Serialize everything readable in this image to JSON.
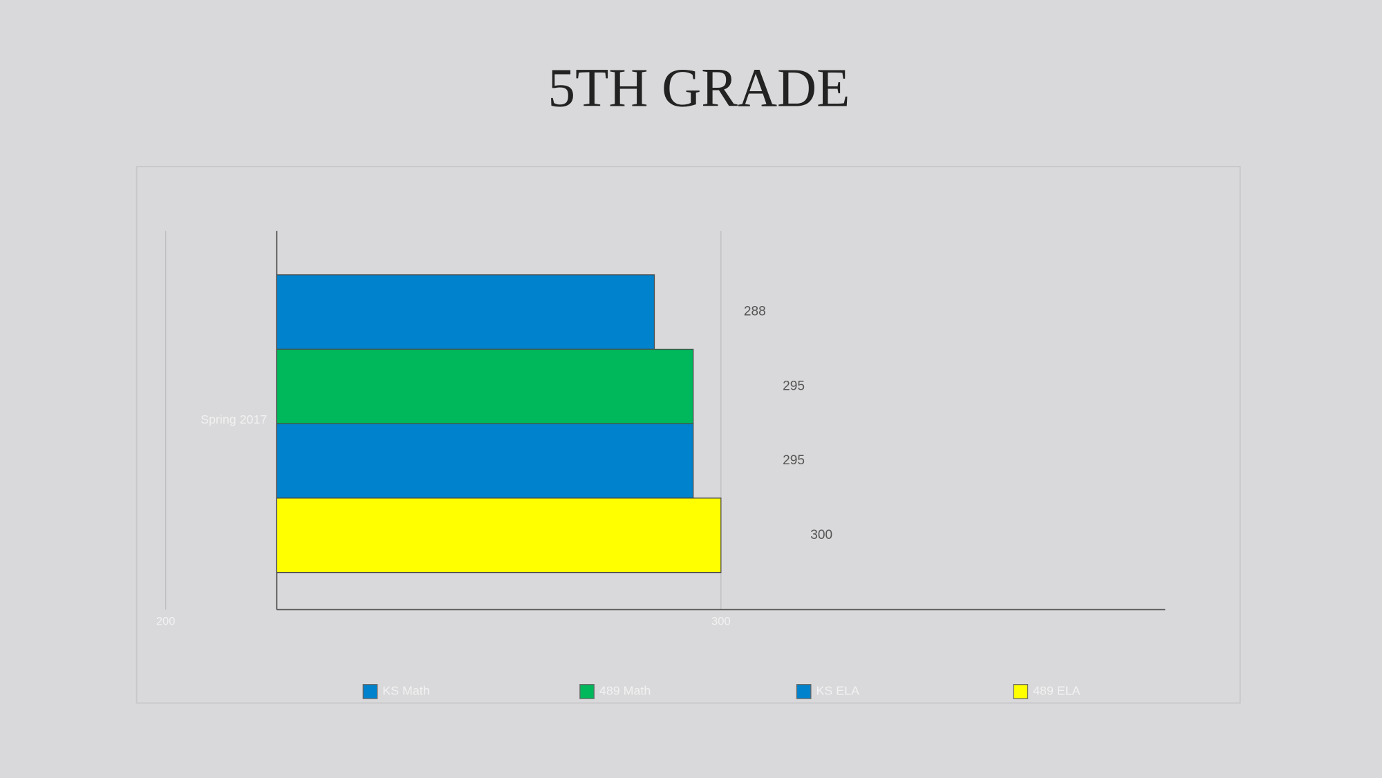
{
  "chart_data": {
    "type": "bar",
    "orientation": "horizontal",
    "title": "5TH GRADE",
    "categories": [
      "Spring 2017"
    ],
    "series": [
      {
        "name": "KS Math",
        "color": "#0082cc",
        "values": [
          288
        ]
      },
      {
        "name": "489 Math",
        "color": "#00b85c",
        "values": [
          295
        ]
      },
      {
        "name": "KS ELA",
        "color": "#0082cc",
        "values": [
          295
        ]
      },
      {
        "name": "489 ELA",
        "color": "#ffff00",
        "values": [
          300
        ]
      }
    ],
    "xlim": [
      200,
      380
    ],
    "xticks": [
      200,
      300
    ],
    "grid": true,
    "legend": "bottom"
  }
}
